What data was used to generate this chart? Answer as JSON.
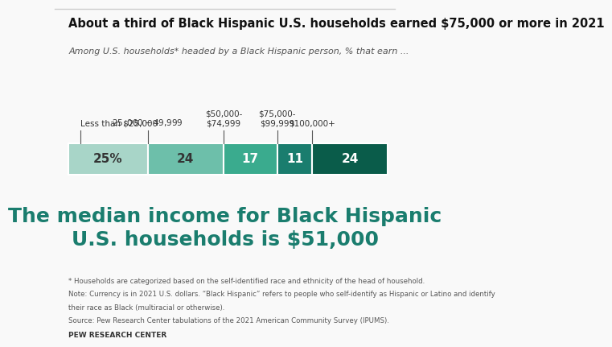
{
  "title": "About a third of Black Hispanic U.S. households earned $75,000 or more in 2021",
  "subtitle": "Among U.S. households* headed by a Black Hispanic person, % that earn ...",
  "categories": [
    "Less than $25,000",
    "$25,000-$49,999",
    "$50,000-\n$74,999",
    "$75,000-\n$99,999",
    "$100,000+"
  ],
  "values": [
    25,
    24,
    17,
    11,
    24
  ],
  "labels": [
    "25%",
    "24",
    "17",
    "11",
    "24"
  ],
  "colors": [
    "#a8d5c8",
    "#6dbfaa",
    "#3aab8e",
    "#1a7d6e",
    "#0a5c4a"
  ],
  "label_colors": [
    "#333333",
    "#333333",
    "#ffffff",
    "#ffffff",
    "#ffffff"
  ],
  "big_text": "The median income for Black Hispanic\nU.S. households is $51,000",
  "big_text_color": "#1a7d6e",
  "footnote1": "* Households are categorized based on the self-identified race and ethnicity of the head of household.",
  "footnote2": "Note: Currency is in 2021 U.S. dollars. “Black Hispanic” refers to people who self-identify as Hispanic or Latino and identify",
  "footnote3": "their race as Black (multiracial or otherwise).",
  "footnote4": "Source: Pew Research Center tabulations of the 2021 American Community Survey (IPUMS).",
  "source_label": "PEW RESEARCH CENTER",
  "background_color": "#f9f9f9"
}
